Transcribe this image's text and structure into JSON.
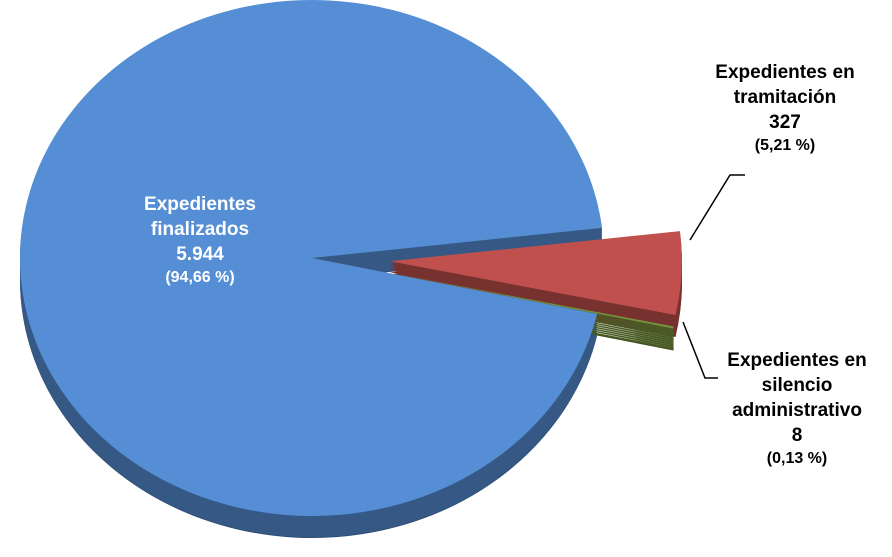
{
  "chart_data": {
    "type": "pie",
    "slices": [
      {
        "label_lines": [
          "Expedientes",
          "finalizados"
        ],
        "value": 5944,
        "value_label": "5.944",
        "percent_label": "(94,66 %)",
        "color": "#558ed5"
      },
      {
        "label_lines": [
          "Expedientes en",
          "tramitación"
        ],
        "value": 327,
        "value_label": "327",
        "percent_label": "(5,21 %)",
        "color": "#c0504d"
      },
      {
        "label_lines": [
          "Expedientes en",
          "silencio",
          "administrativo"
        ],
        "value": 8,
        "value_label": "8",
        "percent_label": "(0,13 %)",
        "color": "#76923c"
      }
    ],
    "style": "3d-exploded",
    "legend": "none"
  }
}
